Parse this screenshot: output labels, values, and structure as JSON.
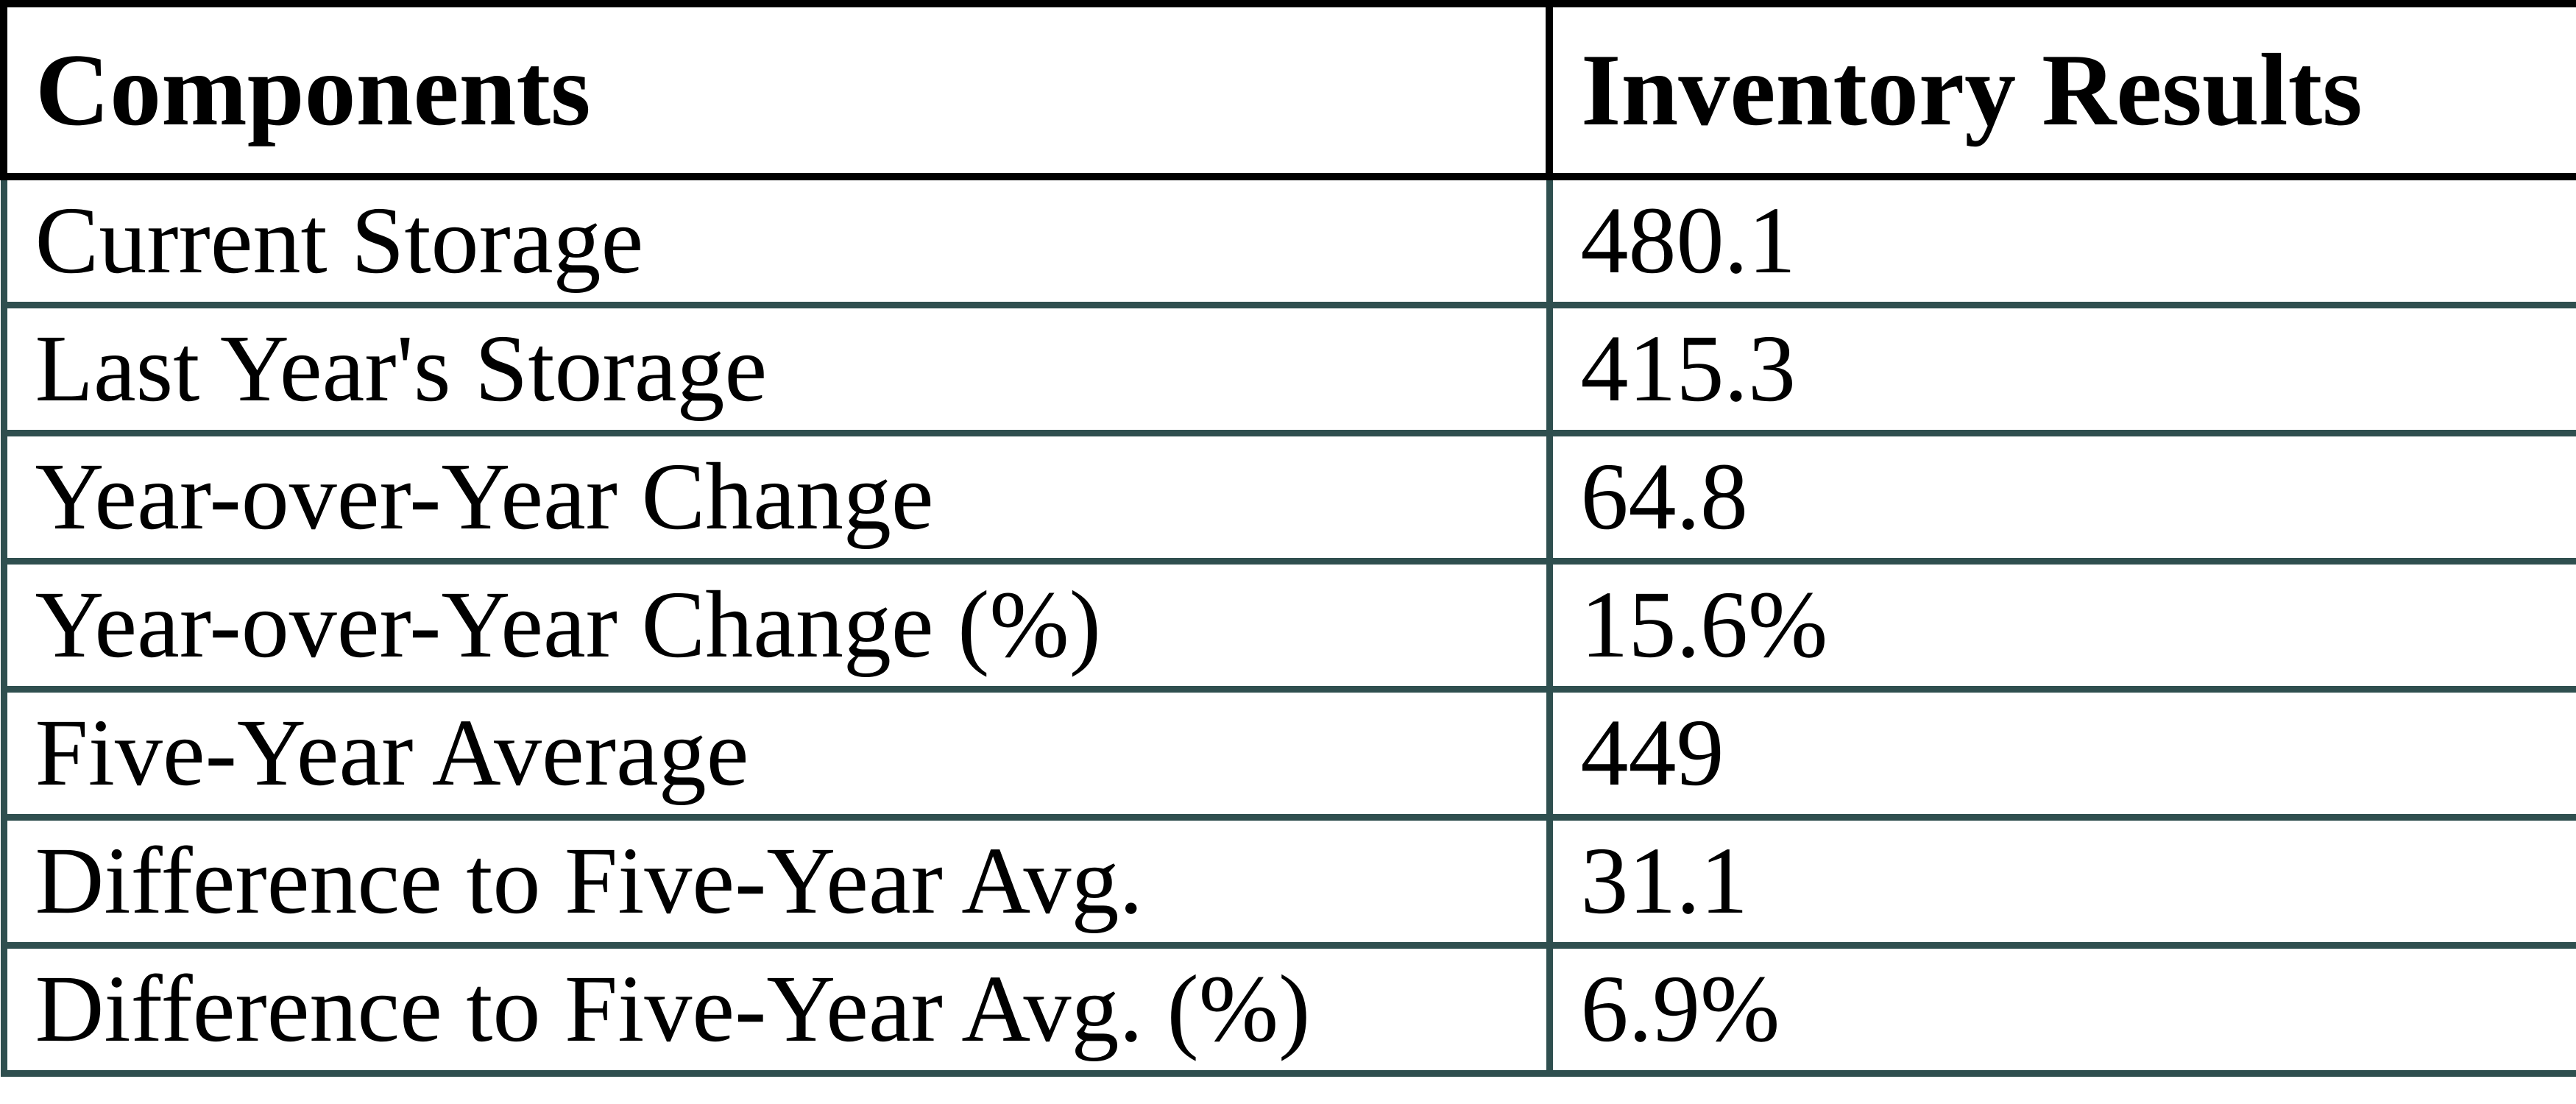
{
  "chart_data": {
    "type": "table",
    "columns": [
      "Components",
      "Inventory Results"
    ],
    "rows": [
      [
        "Current Storage",
        "480.1"
      ],
      [
        "Last Year's Storage",
        "415.3"
      ],
      [
        "Year-over-Year Change",
        "64.8"
      ],
      [
        "Year-over-Year Change (%)",
        "15.6%"
      ],
      [
        "Five-Year Average",
        "449"
      ],
      [
        "Difference to Five-Year Avg.",
        "31.1"
      ],
      [
        "Difference to Five-Year Avg. (%)",
        "6.9%"
      ]
    ]
  },
  "colors": {
    "header_border": "#000000",
    "grid_border": "#2f4f4f",
    "text": "#000000",
    "background": "#ffffff"
  }
}
